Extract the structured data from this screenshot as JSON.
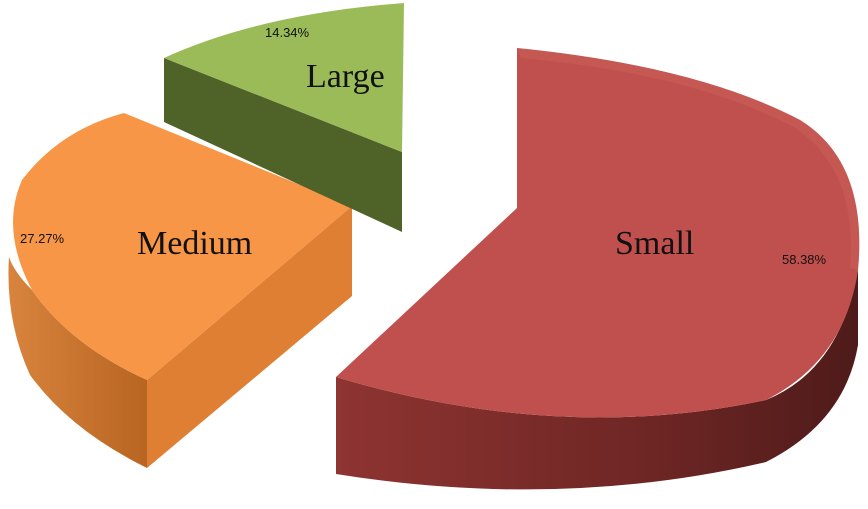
{
  "chart_data": {
    "type": "pie",
    "style": "3d-exploded",
    "legend": "none",
    "slices": [
      {
        "label": "Small",
        "percent_label": "58.38%",
        "value": 58.38,
        "color": "#c0504d",
        "side_color": "#7a2b29"
      },
      {
        "label": "Medium",
        "percent_label": "27.27%",
        "value": 27.27,
        "color": "#f79646",
        "side_color": "#c06b28"
      },
      {
        "label": "Large",
        "percent_label": "14.34%",
        "value": 14.34,
        "color": "#9bbb59",
        "side_color": "#4f6228"
      }
    ]
  }
}
